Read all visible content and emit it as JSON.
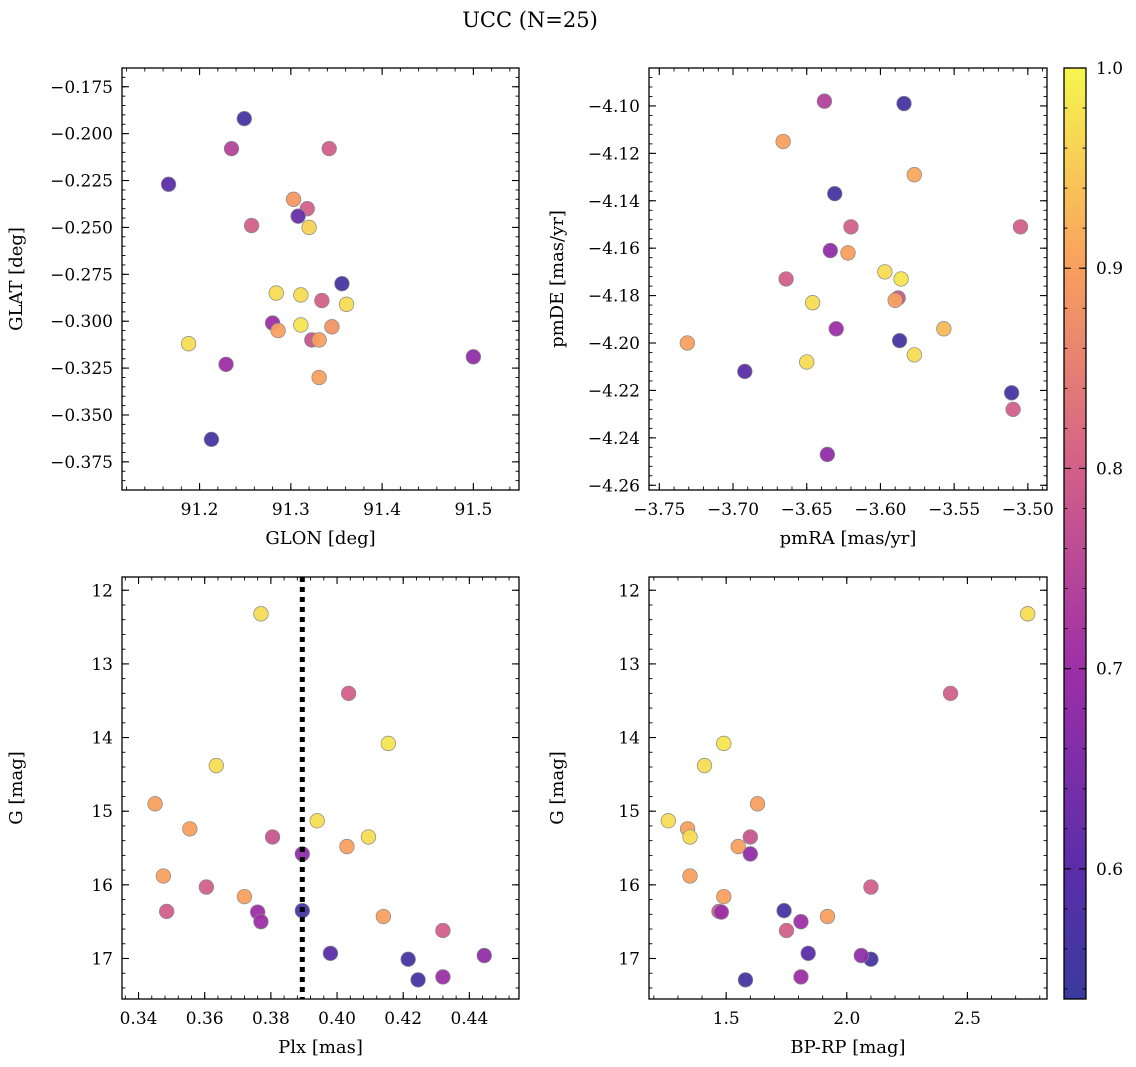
{
  "figure": {
    "title": "UCC (N=25)"
  },
  "colors": {
    "cmap": "plasma",
    "edge": "#888888",
    "frame": "#000000",
    "plx_line": "#000000"
  },
  "chart_data": [
    {
      "type": "scatter",
      "xlabel": "GLON [deg]",
      "ylabel": "GLAT [deg]",
      "xlim": [
        91.115,
        91.55
      ],
      "ylim": [
        -0.39,
        -0.165
      ],
      "xticks": [
        91.2,
        91.3,
        91.4,
        91.5
      ],
      "xtick_labels": [
        "91.2",
        "91.3",
        "91.4",
        "91.5"
      ],
      "yticks": [
        -0.175,
        -0.2,
        -0.225,
        -0.25,
        -0.275,
        -0.3,
        -0.325,
        -0.35,
        -0.375
      ],
      "ytick_labels": [
        "−0.175",
        "−0.200",
        "−0.225",
        "−0.250",
        "−0.275",
        "−0.300",
        "−0.325",
        "−0.350",
        "−0.375"
      ],
      "x": [
        91.249,
        91.166,
        91.342,
        91.235,
        91.303,
        91.318,
        91.308,
        91.257,
        91.32,
        91.356,
        91.284,
        91.311,
        91.361,
        91.334,
        91.311,
        91.28,
        91.345,
        91.286,
        91.323,
        91.331,
        91.188,
        91.5,
        91.229,
        91.331,
        91.213
      ],
      "y": [
        -0.192,
        -0.227,
        -0.208,
        -0.208,
        -0.235,
        -0.24,
        -0.244,
        -0.249,
        -0.25,
        -0.28,
        -0.285,
        -0.286,
        -0.291,
        -0.289,
        -0.302,
        -0.301,
        -0.303,
        -0.305,
        -0.31,
        -0.31,
        -0.312,
        -0.319,
        -0.323,
        -0.33,
        -0.363
      ],
      "c": [
        0.56,
        0.6,
        0.8,
        0.74,
        0.89,
        0.8,
        0.62,
        0.8,
        0.96,
        0.56,
        0.97,
        0.97,
        0.97,
        0.8,
        0.98,
        0.7,
        0.88,
        0.9,
        0.78,
        0.9,
        0.97,
        0.68,
        0.7,
        0.9,
        0.56
      ],
      "colorbar": null
    },
    {
      "type": "scatter",
      "xlabel": "pmRA [mas/yr]",
      "ylabel": "pmDE [mas/yr]",
      "xlim": [
        -3.757,
        -3.487
      ],
      "ylim": [
        -4.262,
        -4.084
      ],
      "xticks": [
        -3.75,
        -3.7,
        -3.65,
        -3.6,
        -3.55,
        -3.5
      ],
      "xtick_labels": [
        "−3.75",
        "−3.70",
        "−3.65",
        "−3.60",
        "−3.55",
        "−3.50"
      ],
      "yticks": [
        -4.1,
        -4.12,
        -4.14,
        -4.16,
        -4.18,
        -4.2,
        -4.22,
        -4.24,
        -4.26
      ],
      "ytick_labels": [
        "−4.10",
        "−4.12",
        "−4.14",
        "−4.16",
        "−4.18",
        "−4.20",
        "−4.22",
        "−4.24",
        "−4.26"
      ],
      "x": [
        -3.638,
        -3.584,
        -3.666,
        -3.577,
        -3.631,
        -3.62,
        -3.505,
        -3.634,
        -3.622,
        -3.664,
        -3.597,
        -3.586,
        -3.646,
        -3.588,
        -3.59,
        -3.63,
        -3.557,
        -3.731,
        -3.587,
        -3.577,
        -3.65,
        -3.692,
        -3.511,
        -3.51,
        -3.636
      ],
      "y": [
        -4.098,
        -4.099,
        -4.115,
        -4.129,
        -4.137,
        -4.151,
        -4.151,
        -4.161,
        -4.162,
        -4.173,
        -4.17,
        -4.173,
        -4.183,
        -4.181,
        -4.182,
        -4.194,
        -4.194,
        -4.2,
        -4.199,
        -4.205,
        -4.208,
        -4.212,
        -4.221,
        -4.228,
        -4.247
      ],
      "c": [
        0.74,
        0.56,
        0.9,
        0.91,
        0.56,
        0.8,
        0.8,
        0.68,
        0.9,
        0.8,
        0.97,
        0.98,
        0.97,
        0.78,
        0.9,
        0.7,
        0.93,
        0.9,
        0.56,
        0.97,
        0.97,
        0.6,
        0.56,
        0.8,
        0.68
      ],
      "colorbar": null
    },
    {
      "type": "scatter",
      "xlabel": "Plx [mas]",
      "ylabel": "G [mag]",
      "xlim": [
        0.335,
        0.455
      ],
      "ylim": [
        17.55,
        11.82
      ],
      "xticks": [
        0.34,
        0.36,
        0.38,
        0.4,
        0.42,
        0.44
      ],
      "xtick_labels": [
        "0.34",
        "0.36",
        "0.38",
        "0.40",
        "0.42",
        "0.44"
      ],
      "yticks": [
        12,
        13,
        14,
        15,
        16,
        17
      ],
      "ytick_labels": [
        "12",
        "13",
        "14",
        "15",
        "16",
        "17"
      ],
      "vline": {
        "x": 0.3895,
        "style": "dotted"
      },
      "x": [
        0.377,
        0.4035,
        0.4155,
        0.3635,
        0.345,
        0.394,
        0.3555,
        0.4095,
        0.3805,
        0.403,
        0.3895,
        0.3475,
        0.3605,
        0.372,
        0.3485,
        0.376,
        0.3895,
        0.414,
        0.377,
        0.432,
        0.398,
        0.4215,
        0.4445,
        0.432,
        0.4245
      ],
      "y": [
        12.32,
        13.4,
        14.08,
        14.38,
        14.9,
        15.13,
        15.24,
        15.35,
        15.35,
        15.48,
        15.58,
        15.88,
        16.03,
        16.16,
        16.36,
        16.37,
        16.35,
        16.43,
        16.5,
        16.62,
        16.93,
        17.01,
        16.96,
        17.25,
        17.29
      ],
      "c": [
        0.97,
        0.8,
        0.98,
        0.97,
        0.9,
        0.97,
        0.9,
        0.97,
        0.78,
        0.9,
        0.68,
        0.9,
        0.8,
        0.9,
        0.8,
        0.7,
        0.56,
        0.9,
        0.7,
        0.8,
        0.6,
        0.56,
        0.68,
        0.7,
        0.56
      ],
      "colorbar": null
    },
    {
      "type": "scatter",
      "xlabel": "BP-RP [mag]",
      "ylabel": "G [mag]",
      "xlim": [
        1.18,
        2.83
      ],
      "ylim": [
        17.55,
        11.82
      ],
      "xticks": [
        1.5,
        2.0,
        2.5
      ],
      "xtick_labels": [
        "1.5",
        "2.0",
        "2.5"
      ],
      "yticks": [
        12,
        13,
        14,
        15,
        16,
        17
      ],
      "ytick_labels": [
        "12",
        "13",
        "14",
        "15",
        "16",
        "17"
      ],
      "x": [
        2.75,
        2.43,
        1.49,
        1.41,
        1.63,
        1.26,
        1.34,
        1.35,
        1.6,
        1.55,
        1.6,
        1.35,
        2.1,
        1.49,
        1.47,
        1.48,
        1.74,
        1.92,
        1.81,
        1.75,
        1.84,
        2.1,
        2.06,
        1.81,
        1.58
      ],
      "y": [
        12.32,
        13.4,
        14.08,
        14.38,
        14.9,
        15.13,
        15.24,
        15.35,
        15.35,
        15.48,
        15.58,
        15.88,
        16.03,
        16.16,
        16.36,
        16.37,
        16.35,
        16.43,
        16.5,
        16.62,
        16.93,
        17.01,
        16.96,
        17.25,
        17.29
      ],
      "c": [
        0.97,
        0.8,
        0.98,
        0.97,
        0.9,
        0.97,
        0.9,
        0.97,
        0.78,
        0.9,
        0.68,
        0.9,
        0.8,
        0.9,
        0.8,
        0.7,
        0.56,
        0.9,
        0.7,
        0.8,
        0.6,
        0.56,
        0.68,
        0.7,
        0.56
      ],
      "colorbar": null
    }
  ],
  "colorbar": {
    "vmin": 0.535,
    "vmax": 1.0,
    "ticks": [
      0.6,
      0.7,
      0.8,
      0.9,
      1.0
    ],
    "tick_labels": [
      "0.6",
      "0.7",
      "0.8",
      "0.9",
      "1.0"
    ]
  }
}
